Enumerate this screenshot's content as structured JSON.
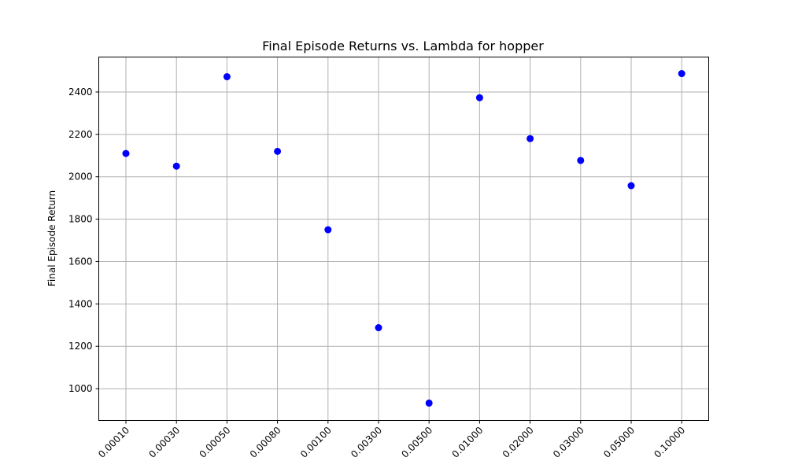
{
  "chart_data": {
    "type": "scatter",
    "title": "Final Episode Returns vs. Lambda for hopper",
    "xlabel": "",
    "ylabel": "Final Episode Return",
    "categories": [
      "0.00010",
      "0.00030",
      "0.00050",
      "0.00080",
      "0.00100",
      "0.00300",
      "0.00500",
      "0.01000",
      "0.02000",
      "0.03000",
      "0.05000",
      "0.10000"
    ],
    "values": [
      2110,
      2050,
      2472,
      2120,
      1750,
      1288,
      932,
      2373,
      2180,
      2077,
      1958,
      2487
    ],
    "ylim": [
      850,
      2565
    ],
    "yticks": [
      1000,
      1200,
      1400,
      1600,
      1800,
      2000,
      2200,
      2400
    ],
    "grid": true,
    "marker_color": "#0000ff"
  }
}
